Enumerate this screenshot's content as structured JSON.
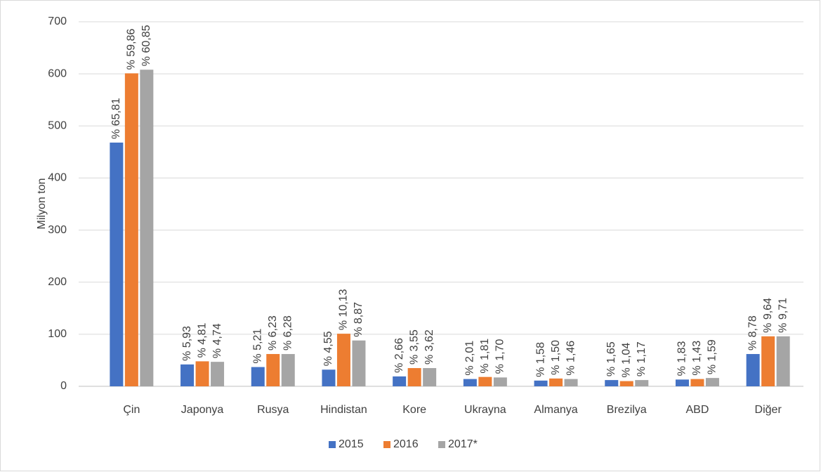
{
  "chart_data": {
    "type": "bar",
    "y_label": "Milyon ton",
    "categories": [
      "Çin",
      "Japonya",
      "Rusya",
      "Hindistan",
      "Kore",
      "Ukrayna",
      "Almanya",
      "Brezilya",
      "ABD",
      "Diğer"
    ],
    "series": [
      {
        "name": "2015",
        "color": "#4472c4",
        "values": [
          468,
          42,
          37,
          32,
          19,
          14,
          11,
          12,
          13,
          62
        ],
        "share_labels": [
          "% 65,81",
          "% 5,93",
          "% 5,21",
          "% 4,55",
          "% 2,66",
          "% 2,01",
          "% 1,58",
          "% 1,65",
          "% 1,83",
          "% 8,78"
        ]
      },
      {
        "name": "2016",
        "color": "#ed7d31",
        "values": [
          601,
          48,
          62,
          101,
          35,
          18,
          15,
          10,
          14,
          96
        ],
        "share_labels": [
          "% 59,86",
          "% 4,81",
          "% 6,23",
          "% 10,13",
          "% 3,55",
          "% 1,81",
          "% 1,50",
          "% 1,04",
          "% 1,43",
          "% 9,64"
        ]
      },
      {
        "name": "2017*",
        "color": "#a5a5a5",
        "values": [
          608,
          47,
          62,
          88,
          35,
          17,
          14,
          12,
          16,
          96
        ],
        "share_labels": [
          "% 60,85",
          "% 4,74",
          "% 6,28",
          "% 8,87",
          "% 3,62",
          "% 1,70",
          "% 1,46",
          "% 1,17",
          "% 1,59",
          "% 9,71"
        ]
      }
    ],
    "ylim": [
      0,
      700
    ],
    "yticks": [
      0,
      100,
      200,
      300,
      400,
      500,
      600,
      700
    ],
    "grid": true,
    "legend": "bottom"
  }
}
